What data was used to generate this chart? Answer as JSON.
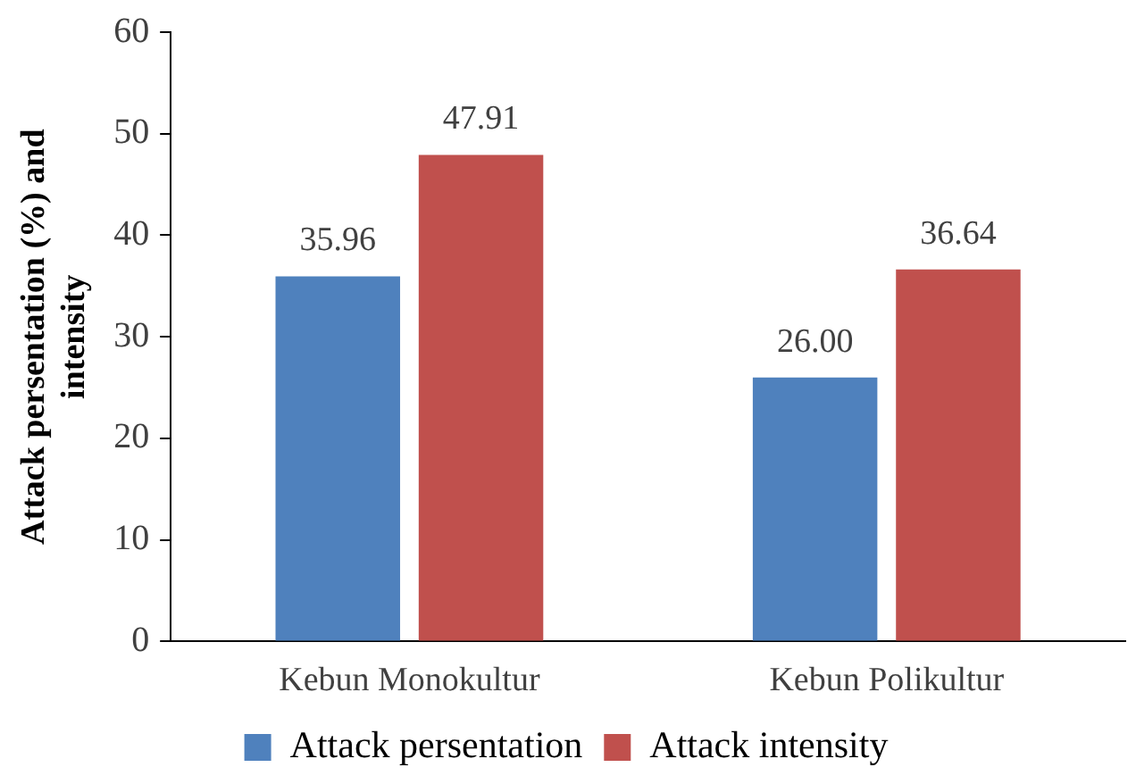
{
  "chart_data": {
    "type": "bar",
    "ylabel": "Attack persentation (%) and intensity",
    "categories": [
      "Kebun Monokultur",
      "Kebun Polikultur"
    ],
    "series": [
      {
        "name": "Attack persentation",
        "color": "#4f81bd",
        "values": [
          35.96,
          26.0
        ],
        "value_labels": [
          "35.96",
          "26.00"
        ]
      },
      {
        "name": "Attack intensity",
        "color": "#c0504d",
        "values": [
          47.91,
          36.64
        ],
        "value_labels": [
          "47.91",
          "36.64"
        ]
      }
    ],
    "ylim": [
      0,
      60
    ],
    "yticks": [
      0,
      10,
      20,
      30,
      40,
      50,
      60
    ],
    "grid": false,
    "legend": "bottom"
  }
}
